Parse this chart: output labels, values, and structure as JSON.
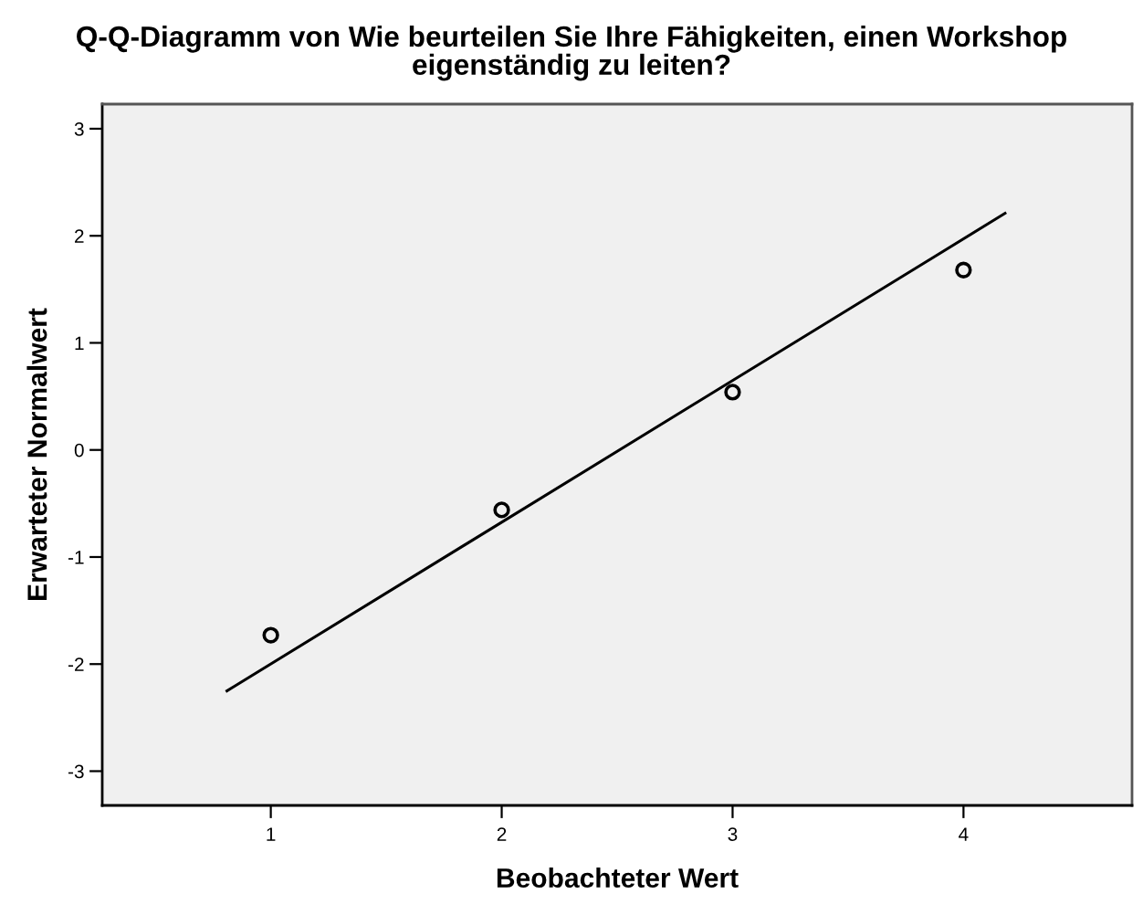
{
  "chart_data": {
    "type": "scatter",
    "title": "Q-Q-Diagramm von Wie beurteilen Sie Ihre Fähigkeiten, einen Workshop\neigenständig zu leiten?",
    "xlabel": "Beobachteter Wert",
    "ylabel": "Erwarteter Normalwert",
    "series": [
      {
        "marker": "circle",
        "color": "#000000",
        "x": [
          1,
          2,
          3,
          4
        ],
        "values": [
          -1.73,
          -0.56,
          0.54,
          1.68
        ]
      },
      {
        "type": "line",
        "marker": "none",
        "line_style": "solid",
        "color": "#000000",
        "x": [
          0.81,
          4.18
        ],
        "values": [
          -2.25,
          2.21
        ]
      }
    ],
    "xlim": [
      0.27,
      4.73
    ],
    "xticks": [
      1,
      2,
      3,
      4
    ],
    "ylim": [
      -3.32,
      3.23
    ],
    "yticks": [
      -3,
      -2,
      -1,
      0,
      1,
      2,
      3
    ],
    "grid": false,
    "legend": false
  }
}
